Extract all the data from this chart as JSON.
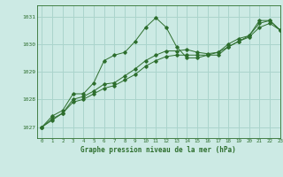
{
  "title": "Graphe pression niveau de la mer (hPa)",
  "bg_color": "#cceae4",
  "grid_color": "#aad4cc",
  "line_color": "#2d6e2d",
  "xlim": [
    -0.5,
    23
  ],
  "ylim": [
    1026.6,
    1031.4
  ],
  "yticks": [
    1027,
    1028,
    1029,
    1030,
    1031
  ],
  "xticks": [
    0,
    1,
    2,
    3,
    4,
    5,
    6,
    7,
    8,
    9,
    10,
    11,
    12,
    13,
    14,
    15,
    16,
    17,
    18,
    19,
    20,
    21,
    22,
    23
  ],
  "series": [
    [
      1027.0,
      1027.4,
      1027.6,
      1028.2,
      1028.2,
      1028.6,
      1029.4,
      1029.6,
      1029.7,
      1030.1,
      1030.6,
      1030.95,
      1030.6,
      1029.9,
      1029.5,
      1029.5,
      1029.6,
      1029.6,
      1029.9,
      1030.1,
      1030.3,
      1030.85,
      1030.85,
      1030.5
    ],
    [
      1027.0,
      1027.3,
      1027.5,
      1028.0,
      1028.1,
      1028.3,
      1028.55,
      1028.6,
      1028.85,
      1029.1,
      1029.4,
      1029.6,
      1029.75,
      1029.75,
      1029.8,
      1029.7,
      1029.65,
      1029.7,
      1030.0,
      1030.2,
      1030.3,
      1030.75,
      1030.85,
      1030.5
    ],
    [
      1027.0,
      1027.25,
      1027.5,
      1027.9,
      1028.0,
      1028.2,
      1028.4,
      1028.5,
      1028.7,
      1028.9,
      1029.2,
      1029.4,
      1029.55,
      1029.6,
      1029.6,
      1029.6,
      1029.6,
      1029.7,
      1029.9,
      1030.1,
      1030.25,
      1030.6,
      1030.75,
      1030.5
    ]
  ]
}
